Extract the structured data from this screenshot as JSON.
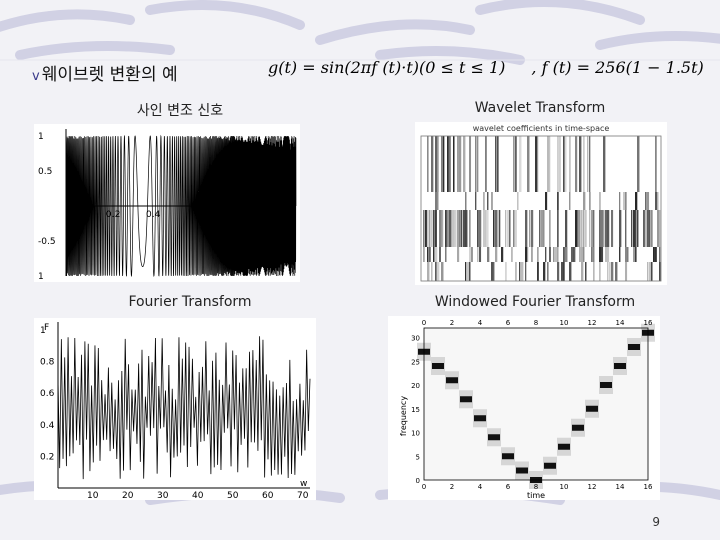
{
  "slide": {
    "title_bullet": "v",
    "title": "웨이브렛 변환의 예",
    "formula_g": "g(t) = sin(2πf (t)·t)(0 ≤ t ≤ 1)",
    "formula_f": ", f (t) = 256(1 − 1.5t)",
    "page_number": "9"
  },
  "captions": {
    "signal": "사인 변조 신호",
    "wavelet": "Wavelet Transform",
    "fourier": "Fourier Transform",
    "windowed": "Windowed Fourier Transform"
  },
  "chart_data": [
    {
      "type": "line",
      "name_in_slide": "signal",
      "y_ticks": [
        "1",
        "0.5",
        "-0.5",
        "1"
      ],
      "x_ticks": [
        "0.2",
        "0.4"
      ],
      "ylim": [
        -1,
        1
      ]
    },
    {
      "type": "heatmap",
      "name_in_slide": "wavelet",
      "title": "wavelet coefficients in time-space"
    },
    {
      "type": "line",
      "name_in_slide": "fourier",
      "ylabel": "F",
      "xlabel": "w",
      "y_ticks": [
        "1",
        "0.8",
        "0.6",
        "0.4",
        "0.2"
      ],
      "x_ticks": [
        "10",
        "20",
        "30",
        "40",
        "50",
        "60",
        "70"
      ],
      "xlim": [
        0,
        72
      ],
      "ylim": [
        0,
        1
      ]
    },
    {
      "type": "heatmap",
      "name_in_slide": "windowed",
      "xlabel": "time",
      "ylabel": "frequency",
      "x_ticks": [
        "0",
        "2",
        "4",
        "6",
        "8",
        "10",
        "12",
        "14",
        "16"
      ],
      "y_ticks": [
        "30",
        "25",
        "20",
        "15",
        "10",
        "5",
        "0"
      ],
      "xlim": [
        0,
        16
      ],
      "ylim": [
        0,
        32
      ],
      "ridge_points": [
        [
          0,
          27
        ],
        [
          1,
          24
        ],
        [
          2,
          21
        ],
        [
          3,
          17
        ],
        [
          4,
          13
        ],
        [
          5,
          9
        ],
        [
          6,
          5
        ],
        [
          7,
          2
        ],
        [
          8,
          0
        ],
        [
          9,
          3
        ],
        [
          10,
          7
        ],
        [
          11,
          11
        ],
        [
          12,
          15
        ],
        [
          13,
          20
        ],
        [
          14,
          24
        ],
        [
          15,
          28
        ],
        [
          16,
          31
        ]
      ]
    }
  ]
}
